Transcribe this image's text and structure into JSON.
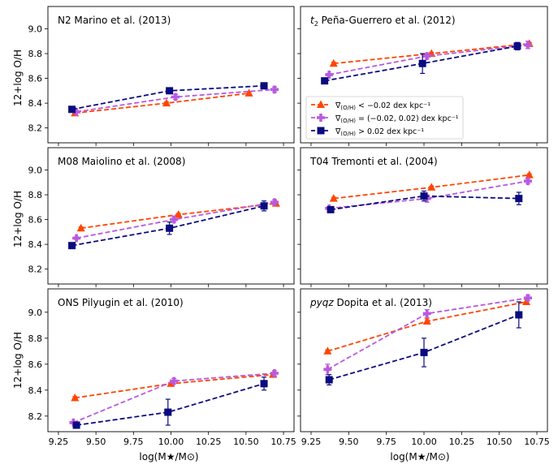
{
  "figure": {
    "xlabel": "log(M★/M⊙)",
    "ylabel": "12+log O/H",
    "xticks": [
      "9.25",
      "9.50",
      "9.75",
      "10.00",
      "10.25",
      "10.50",
      "10.75"
    ],
    "yticks": [
      "8.2",
      "8.4",
      "8.6",
      "8.8",
      "9.0"
    ]
  },
  "colors": {
    "low": "#ff4500",
    "mid": "#b85ae0",
    "high": "#0b0b80"
  },
  "legend": {
    "placement": "panel t2, middle-left",
    "items": [
      {
        "series": "low",
        "prefix": "∇",
        "sub": "(O/H)",
        "text": " < −0.02 dex kpc⁻¹"
      },
      {
        "series": "mid",
        "prefix": "∇",
        "sub": "(O/H)",
        "text": " = (−0.02, 0.02) dex kpc⁻¹"
      },
      {
        "series": "high",
        "prefix": "∇",
        "sub": "(O/H)",
        "text": " > 0.02 dex kpc⁻¹"
      }
    ]
  },
  "chart_data": [
    {
      "type": "line",
      "title": "N2 Marino et al. (2013)",
      "title_italic": "",
      "xlim": [
        9.18,
        10.82
      ],
      "ylim": [
        8.08,
        9.18
      ],
      "series": [
        {
          "key": "low",
          "marker": "triangle",
          "x": [
            9.36,
            9.97,
            10.52
          ],
          "y": [
            8.32,
            8.4,
            8.48
          ],
          "err": [
            0.01,
            0.01,
            0.01
          ]
        },
        {
          "key": "mid",
          "marker": "plus",
          "x": [
            9.37,
            10.03,
            10.69
          ],
          "y": [
            8.33,
            8.45,
            8.51
          ],
          "err": [
            0.01,
            0.02,
            0.02
          ]
        },
        {
          "key": "high",
          "marker": "square",
          "x": [
            9.34,
            9.99,
            10.62
          ],
          "y": [
            8.35,
            8.5,
            8.54
          ],
          "err": [
            0.01,
            0.01,
            0.01
          ]
        }
      ]
    },
    {
      "type": "line",
      "title": " Peña-Guerrero et al. (2012)",
      "title_italic": "t",
      "title_italic_sub": "2",
      "xlim": [
        9.18,
        10.82
      ],
      "ylim": [
        8.08,
        9.18
      ],
      "series": [
        {
          "key": "low",
          "marker": "triangle",
          "x": [
            9.4,
            10.05,
            10.7
          ],
          "y": [
            8.72,
            8.8,
            8.88
          ],
          "err": [
            0.01,
            0.01,
            0.01
          ]
        },
        {
          "key": "mid",
          "marker": "plus",
          "x": [
            9.37,
            10.02,
            10.69
          ],
          "y": [
            8.63,
            8.78,
            8.87
          ],
          "err": [
            0.01,
            0.02,
            0.03
          ]
        },
        {
          "key": "high",
          "marker": "square",
          "x": [
            9.34,
            9.99,
            10.62
          ],
          "y": [
            8.58,
            8.72,
            8.86
          ],
          "err": [
            0.01,
            0.08,
            0.03
          ]
        }
      ]
    },
    {
      "type": "line",
      "title": "M08 Maiolino et al. (2008)",
      "title_italic": "",
      "xlim": [
        9.18,
        10.82
      ],
      "ylim": [
        8.08,
        9.18
      ],
      "series": [
        {
          "key": "low",
          "marker": "triangle",
          "x": [
            9.4,
            10.05,
            10.7
          ],
          "y": [
            8.53,
            8.64,
            8.73
          ],
          "err": [
            0.01,
            0.01,
            0.01
          ]
        },
        {
          "key": "mid",
          "marker": "plus",
          "x": [
            9.37,
            10.02,
            10.69
          ],
          "y": [
            8.45,
            8.6,
            8.74
          ],
          "err": [
            0.01,
            0.02,
            0.02
          ]
        },
        {
          "key": "high",
          "marker": "square",
          "x": [
            9.34,
            9.99,
            10.62
          ],
          "y": [
            8.39,
            8.53,
            8.71
          ],
          "err": [
            0.01,
            0.05,
            0.04
          ]
        }
      ]
    },
    {
      "type": "line",
      "title": "T04 Tremonti et al. (2004)",
      "title_italic": "",
      "xlim": [
        9.18,
        10.82
      ],
      "ylim": [
        8.08,
        9.18
      ],
      "series": [
        {
          "key": "low",
          "marker": "triangle",
          "x": [
            9.4,
            10.05,
            10.7
          ],
          "y": [
            8.77,
            8.86,
            8.96
          ],
          "err": [
            0.01,
            0.01,
            0.01
          ]
        },
        {
          "key": "mid",
          "marker": "plus",
          "x": [
            9.37,
            10.02,
            10.69
          ],
          "y": [
            8.69,
            8.77,
            8.91
          ],
          "err": [
            0.01,
            0.03,
            0.02
          ]
        },
        {
          "key": "high",
          "marker": "square",
          "x": [
            9.38,
            10.0,
            10.63
          ],
          "y": [
            8.68,
            8.79,
            8.77
          ],
          "err": [
            0.01,
            0.04,
            0.05
          ]
        }
      ]
    },
    {
      "type": "line",
      "title": "ONS Pilyugin et al. (2010)",
      "title_italic": "",
      "xlim": [
        9.18,
        10.82
      ],
      "ylim": [
        8.08,
        9.18
      ],
      "series": [
        {
          "key": "low",
          "marker": "triangle",
          "x": [
            9.36,
            10.0,
            10.68
          ],
          "y": [
            8.34,
            8.45,
            8.52
          ],
          "err": [
            0.01,
            0.01,
            0.01
          ]
        },
        {
          "key": "mid",
          "marker": "plus",
          "x": [
            9.35,
            10.02,
            10.69
          ],
          "y": [
            8.15,
            8.47,
            8.53
          ],
          "err": [
            0.01,
            0.02,
            0.02
          ]
        },
        {
          "key": "high",
          "marker": "square",
          "x": [
            9.37,
            9.98,
            10.62
          ],
          "y": [
            8.13,
            8.23,
            8.45
          ],
          "err": [
            0.01,
            0.1,
            0.05
          ]
        }
      ]
    },
    {
      "type": "line",
      "title": " Dopita et al. (2013)",
      "title_italic": "pyqz",
      "xlim": [
        9.18,
        10.82
      ],
      "ylim": [
        8.08,
        9.18
      ],
      "series": [
        {
          "key": "low",
          "marker": "triangle",
          "x": [
            9.36,
            10.02,
            10.68
          ],
          "y": [
            8.7,
            8.93,
            9.08
          ],
          "err": [
            0.01,
            0.02,
            0.02
          ]
        },
        {
          "key": "mid",
          "marker": "plus",
          "x": [
            9.36,
            10.02,
            10.69
          ],
          "y": [
            8.56,
            8.99,
            9.11
          ],
          "err": [
            0.04,
            0.03,
            0.02
          ]
        },
        {
          "key": "high",
          "marker": "square",
          "x": [
            9.37,
            10.0,
            10.63
          ],
          "y": [
            8.48,
            8.69,
            8.98
          ],
          "err": [
            0.04,
            0.11,
            0.1
          ]
        }
      ]
    }
  ]
}
